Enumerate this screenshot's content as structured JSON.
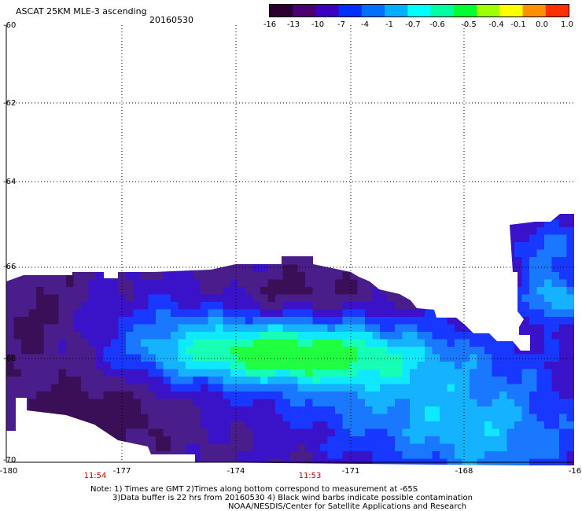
{
  "header": {
    "title": "ASCAT 25KM MLE-3 ascending",
    "date": "20160530"
  },
  "colorbar": {
    "labels": [
      "-16",
      "-13",
      "-10",
      "-7",
      "-4",
      "-1",
      "-0.7",
      "-0.6",
      "-0.5",
      "-0.4",
      "-0.1",
      "0.0",
      "1.0"
    ],
    "colors": [
      "#2a0030",
      "#4a0070",
      "#3d00c0",
      "#0030ff",
      "#0070ff",
      "#00b0ff",
      "#00ffff",
      "#00ffa0",
      "#00ff30",
      "#a0ff00",
      "#ffff00",
      "#ff9000",
      "#ff3000"
    ]
  },
  "axes": {
    "lat_labels": [
      "-60",
      "-62",
      "-64",
      "-66",
      "-68",
      "-70"
    ],
    "lon_labels": [
      "-180",
      "-177",
      "-174",
      "-171",
      "-168",
      "-16"
    ]
  },
  "times": [
    "11:54",
    "11:53"
  ],
  "footer": {
    "line1": "Note: 1) Times are GMT 2)Times along bottom correspond to measurement at -65S",
    "line2": "3)Data buffer is 22 hrs from 20160530 4) Black wind barbs indicate possible contamination",
    "line3": "NOAA/NESDIS/Center for Satellite Applications and Research"
  }
}
